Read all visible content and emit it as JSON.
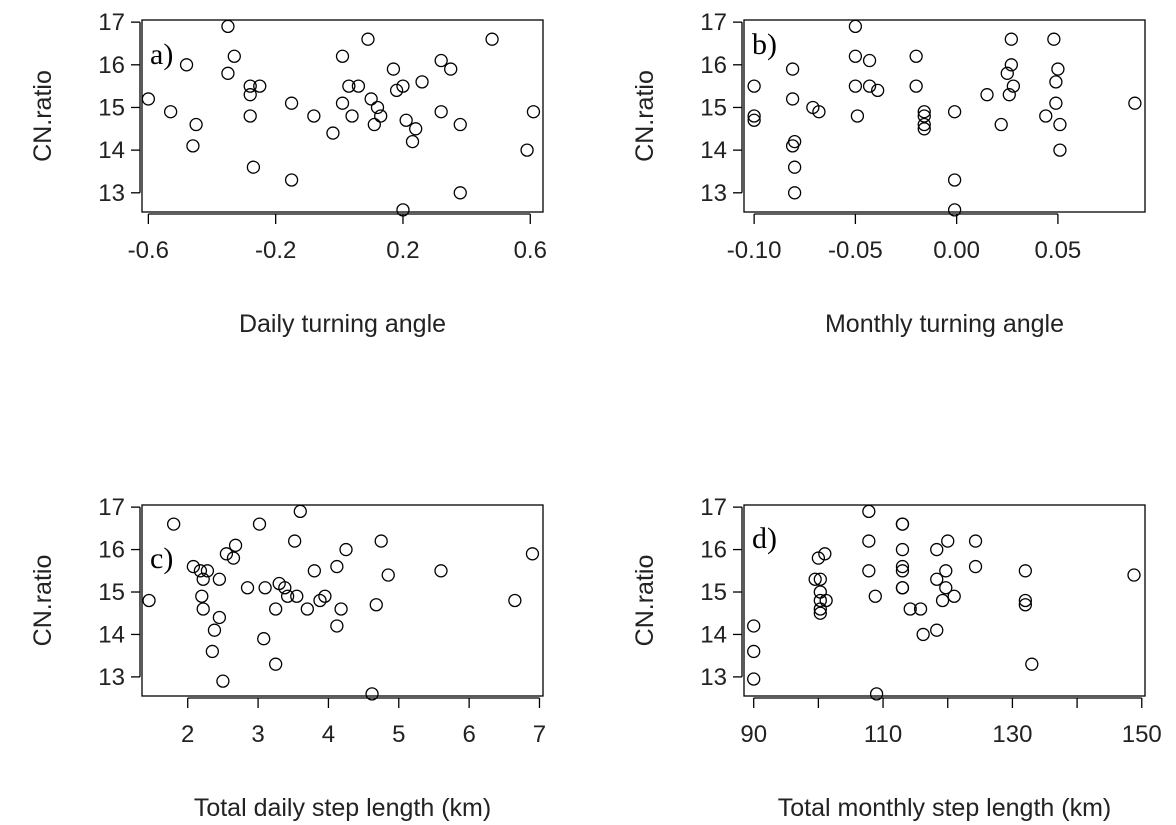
{
  "chart_data": [
    {
      "type": "scatter",
      "panel_label": "a)",
      "xlabel": "Daily turning angle",
      "ylabel": "CN.ratio",
      "xlim": [
        -0.62,
        0.64
      ],
      "ylim": [
        12.55,
        17.05
      ],
      "xticks": [
        -0.6,
        -0.2,
        0.2,
        0.6
      ],
      "xtick_labels": [
        "-0.6",
        "-0.2",
        "0.2",
        "0.6"
      ],
      "yticks": [
        13,
        14,
        15,
        16,
        17
      ],
      "ytick_labels": [
        "13",
        "14",
        "15",
        "16",
        "17"
      ],
      "grid": false,
      "points": [
        {
          "x": -0.6,
          "y": 15.2
        },
        {
          "x": -0.53,
          "y": 14.9
        },
        {
          "x": -0.48,
          "y": 16.0
        },
        {
          "x": -0.46,
          "y": 14.1
        },
        {
          "x": -0.45,
          "y": 14.6
        },
        {
          "x": -0.35,
          "y": 16.9
        },
        {
          "x": -0.35,
          "y": 15.8
        },
        {
          "x": -0.33,
          "y": 16.2
        },
        {
          "x": -0.28,
          "y": 15.5
        },
        {
          "x": -0.28,
          "y": 15.3
        },
        {
          "x": -0.28,
          "y": 14.8
        },
        {
          "x": -0.27,
          "y": 13.6
        },
        {
          "x": -0.25,
          "y": 15.5
        },
        {
          "x": -0.15,
          "y": 15.1
        },
        {
          "x": -0.15,
          "y": 13.3
        },
        {
          "x": -0.08,
          "y": 14.8
        },
        {
          "x": -0.02,
          "y": 14.4
        },
        {
          "x": 0.01,
          "y": 16.2
        },
        {
          "x": 0.01,
          "y": 15.1
        },
        {
          "x": 0.03,
          "y": 15.5
        },
        {
          "x": 0.04,
          "y": 14.8
        },
        {
          "x": 0.06,
          "y": 15.5
        },
        {
          "x": 0.09,
          "y": 16.6
        },
        {
          "x": 0.1,
          "y": 15.2
        },
        {
          "x": 0.11,
          "y": 14.6
        },
        {
          "x": 0.12,
          "y": 15.0
        },
        {
          "x": 0.13,
          "y": 14.8
        },
        {
          "x": 0.17,
          "y": 15.9
        },
        {
          "x": 0.18,
          "y": 15.4
        },
        {
          "x": 0.2,
          "y": 15.5
        },
        {
          "x": 0.2,
          "y": 12.6
        },
        {
          "x": 0.21,
          "y": 14.7
        },
        {
          "x": 0.23,
          "y": 14.2
        },
        {
          "x": 0.24,
          "y": 14.5
        },
        {
          "x": 0.26,
          "y": 15.6
        },
        {
          "x": 0.32,
          "y": 16.1
        },
        {
          "x": 0.32,
          "y": 14.9
        },
        {
          "x": 0.35,
          "y": 15.9
        },
        {
          "x": 0.38,
          "y": 14.6
        },
        {
          "x": 0.38,
          "y": 13.0
        },
        {
          "x": 0.48,
          "y": 16.6
        },
        {
          "x": 0.59,
          "y": 14.0
        },
        {
          "x": 0.61,
          "y": 14.9
        }
      ]
    },
    {
      "type": "scatter",
      "panel_label": "b)",
      "xlabel": "Monthly turning angle",
      "ylabel": "CN.ratio",
      "xlim": [
        -0.105,
        0.093
      ],
      "ylim": [
        12.55,
        17.05
      ],
      "xticks": [
        -0.1,
        -0.05,
        0.0,
        0.05
      ],
      "xtick_labels": [
        "-0.10",
        "-0.05",
        "0.00",
        "0.05"
      ],
      "yticks": [
        13,
        14,
        15,
        16,
        17
      ],
      "ytick_labels": [
        "13",
        "14",
        "15",
        "16",
        "17"
      ],
      "grid": false,
      "points": [
        {
          "x": -0.1,
          "y": 15.5
        },
        {
          "x": -0.1,
          "y": 14.8
        },
        {
          "x": -0.1,
          "y": 14.7
        },
        {
          "x": -0.081,
          "y": 15.9
        },
        {
          "x": -0.081,
          "y": 15.2
        },
        {
          "x": -0.081,
          "y": 14.1
        },
        {
          "x": -0.08,
          "y": 14.2
        },
        {
          "x": -0.08,
          "y": 13.6
        },
        {
          "x": -0.08,
          "y": 13.0
        },
        {
          "x": -0.071,
          "y": 15.0
        },
        {
          "x": -0.068,
          "y": 14.9
        },
        {
          "x": -0.05,
          "y": 16.9
        },
        {
          "x": -0.05,
          "y": 16.2
        },
        {
          "x": -0.05,
          "y": 15.5
        },
        {
          "x": -0.049,
          "y": 14.8
        },
        {
          "x": -0.043,
          "y": 16.1
        },
        {
          "x": -0.043,
          "y": 15.5
        },
        {
          "x": -0.039,
          "y": 15.4
        },
        {
          "x": -0.02,
          "y": 16.2
        },
        {
          "x": -0.02,
          "y": 15.5
        },
        {
          "x": -0.016,
          "y": 14.9
        },
        {
          "x": -0.016,
          "y": 14.8
        },
        {
          "x": -0.016,
          "y": 14.6
        },
        {
          "x": -0.016,
          "y": 14.5
        },
        {
          "x": -0.001,
          "y": 14.9
        },
        {
          "x": -0.001,
          "y": 13.3
        },
        {
          "x": -0.001,
          "y": 12.6
        },
        {
          "x": 0.015,
          "y": 15.3
        },
        {
          "x": 0.022,
          "y": 14.6
        },
        {
          "x": 0.025,
          "y": 15.8
        },
        {
          "x": 0.026,
          "y": 15.3
        },
        {
          "x": 0.027,
          "y": 16.6
        },
        {
          "x": 0.027,
          "y": 16.0
        },
        {
          "x": 0.028,
          "y": 15.5
        },
        {
          "x": 0.044,
          "y": 14.8
        },
        {
          "x": 0.048,
          "y": 16.6
        },
        {
          "x": 0.049,
          "y": 15.6
        },
        {
          "x": 0.049,
          "y": 15.1
        },
        {
          "x": 0.05,
          "y": 15.9
        },
        {
          "x": 0.051,
          "y": 14.6
        },
        {
          "x": 0.051,
          "y": 14.0
        },
        {
          "x": 0.088,
          "y": 15.1
        }
      ]
    },
    {
      "type": "scatter",
      "panel_label": "c)",
      "xlabel": "Total daily step length (km)",
      "ylabel": "CN.ratio",
      "xlim": [
        1.35,
        7.05
      ],
      "ylim": [
        12.55,
        17.05
      ],
      "xticks": [
        2,
        3,
        4,
        5,
        6,
        7
      ],
      "xtick_labels": [
        "2",
        "3",
        "4",
        "5",
        "6",
        "7"
      ],
      "yticks": [
        13,
        14,
        15,
        16,
        17
      ],
      "ytick_labels": [
        "13",
        "14",
        "15",
        "16",
        "17"
      ],
      "grid": false,
      "points": [
        {
          "x": 1.45,
          "y": 14.8
        },
        {
          "x": 1.8,
          "y": 16.6
        },
        {
          "x": 2.08,
          "y": 15.6
        },
        {
          "x": 2.18,
          "y": 15.5
        },
        {
          "x": 2.2,
          "y": 14.9
        },
        {
          "x": 2.22,
          "y": 15.3
        },
        {
          "x": 2.22,
          "y": 14.6
        },
        {
          "x": 2.28,
          "y": 15.5
        },
        {
          "x": 2.35,
          "y": 13.6
        },
        {
          "x": 2.38,
          "y": 14.1
        },
        {
          "x": 2.45,
          "y": 15.3
        },
        {
          "x": 2.45,
          "y": 14.4
        },
        {
          "x": 2.5,
          "y": 12.9
        },
        {
          "x": 2.55,
          "y": 15.9
        },
        {
          "x": 2.65,
          "y": 15.8
        },
        {
          "x": 2.68,
          "y": 16.1
        },
        {
          "x": 2.85,
          "y": 15.1
        },
        {
          "x": 3.02,
          "y": 16.6
        },
        {
          "x": 3.08,
          "y": 13.9
        },
        {
          "x": 3.1,
          "y": 15.1
        },
        {
          "x": 3.25,
          "y": 14.6
        },
        {
          "x": 3.25,
          "y": 13.3
        },
        {
          "x": 3.3,
          "y": 15.2
        },
        {
          "x": 3.38,
          "y": 15.1
        },
        {
          "x": 3.42,
          "y": 14.9
        },
        {
          "x": 3.52,
          "y": 16.2
        },
        {
          "x": 3.55,
          "y": 14.9
        },
        {
          "x": 3.6,
          "y": 16.9
        },
        {
          "x": 3.7,
          "y": 14.6
        },
        {
          "x": 3.8,
          "y": 15.5
        },
        {
          "x": 3.88,
          "y": 14.8
        },
        {
          "x": 3.95,
          "y": 14.9
        },
        {
          "x": 4.12,
          "y": 15.6
        },
        {
          "x": 4.12,
          "y": 14.2
        },
        {
          "x": 4.18,
          "y": 14.6
        },
        {
          "x": 4.25,
          "y": 16.0
        },
        {
          "x": 4.62,
          "y": 12.6
        },
        {
          "x": 4.68,
          "y": 14.7
        },
        {
          "x": 4.75,
          "y": 16.2
        },
        {
          "x": 4.85,
          "y": 15.4
        },
        {
          "x": 5.6,
          "y": 15.5
        },
        {
          "x": 6.65,
          "y": 14.8
        },
        {
          "x": 6.9,
          "y": 15.9
        }
      ]
    },
    {
      "type": "scatter",
      "panel_label": "d)",
      "xlabel": "Total monthly step length (km)",
      "ylabel": "CN.ratio",
      "xlim": [
        88.5,
        150.5
      ],
      "ylim": [
        12.55,
        17.05
      ],
      "xticks": [
        90,
        100,
        110,
        120,
        130,
        140,
        150
      ],
      "xtick_labels": [
        "90",
        "",
        "110",
        "",
        "130",
        "",
        "150"
      ],
      "yticks": [
        13,
        14,
        15,
        16,
        17
      ],
      "ytick_labels": [
        "13",
        "14",
        "15",
        "16",
        "17"
      ],
      "grid": false,
      "points": [
        {
          "x": 90.0,
          "y": 14.2
        },
        {
          "x": 90.0,
          "y": 13.6
        },
        {
          "x": 90.0,
          "y": 12.95
        },
        {
          "x": 99.5,
          "y": 15.3
        },
        {
          "x": 100.0,
          "y": 15.8
        },
        {
          "x": 100.3,
          "y": 15.3
        },
        {
          "x": 100.3,
          "y": 15.0
        },
        {
          "x": 100.3,
          "y": 14.8
        },
        {
          "x": 100.3,
          "y": 14.6
        },
        {
          "x": 100.3,
          "y": 14.5
        },
        {
          "x": 101.0,
          "y": 15.9
        },
        {
          "x": 101.2,
          "y": 14.8
        },
        {
          "x": 107.8,
          "y": 16.9
        },
        {
          "x": 107.8,
          "y": 16.2
        },
        {
          "x": 107.8,
          "y": 15.5
        },
        {
          "x": 108.8,
          "y": 14.9
        },
        {
          "x": 109.0,
          "y": 12.6
        },
        {
          "x": 113.0,
          "y": 16.6
        },
        {
          "x": 113.0,
          "y": 16.6
        },
        {
          "x": 113.0,
          "y": 16.0
        },
        {
          "x": 113.0,
          "y": 15.6
        },
        {
          "x": 113.0,
          "y": 15.5
        },
        {
          "x": 113.0,
          "y": 15.1
        },
        {
          "x": 113.0,
          "y": 15.1
        },
        {
          "x": 114.2,
          "y": 14.6
        },
        {
          "x": 115.8,
          "y": 14.6
        },
        {
          "x": 116.2,
          "y": 14.0
        },
        {
          "x": 118.3,
          "y": 16.0
        },
        {
          "x": 118.3,
          "y": 15.3
        },
        {
          "x": 118.3,
          "y": 14.1
        },
        {
          "x": 119.2,
          "y": 14.8
        },
        {
          "x": 119.7,
          "y": 15.1
        },
        {
          "x": 119.7,
          "y": 15.5
        },
        {
          "x": 120.0,
          "y": 16.2
        },
        {
          "x": 121.0,
          "y": 14.9
        },
        {
          "x": 124.3,
          "y": 16.2
        },
        {
          "x": 124.3,
          "y": 15.6
        },
        {
          "x": 132.0,
          "y": 15.5
        },
        {
          "x": 132.0,
          "y": 14.8
        },
        {
          "x": 132.0,
          "y": 14.7
        },
        {
          "x": 133.0,
          "y": 13.3
        },
        {
          "x": 148.8,
          "y": 15.4
        }
      ]
    }
  ]
}
